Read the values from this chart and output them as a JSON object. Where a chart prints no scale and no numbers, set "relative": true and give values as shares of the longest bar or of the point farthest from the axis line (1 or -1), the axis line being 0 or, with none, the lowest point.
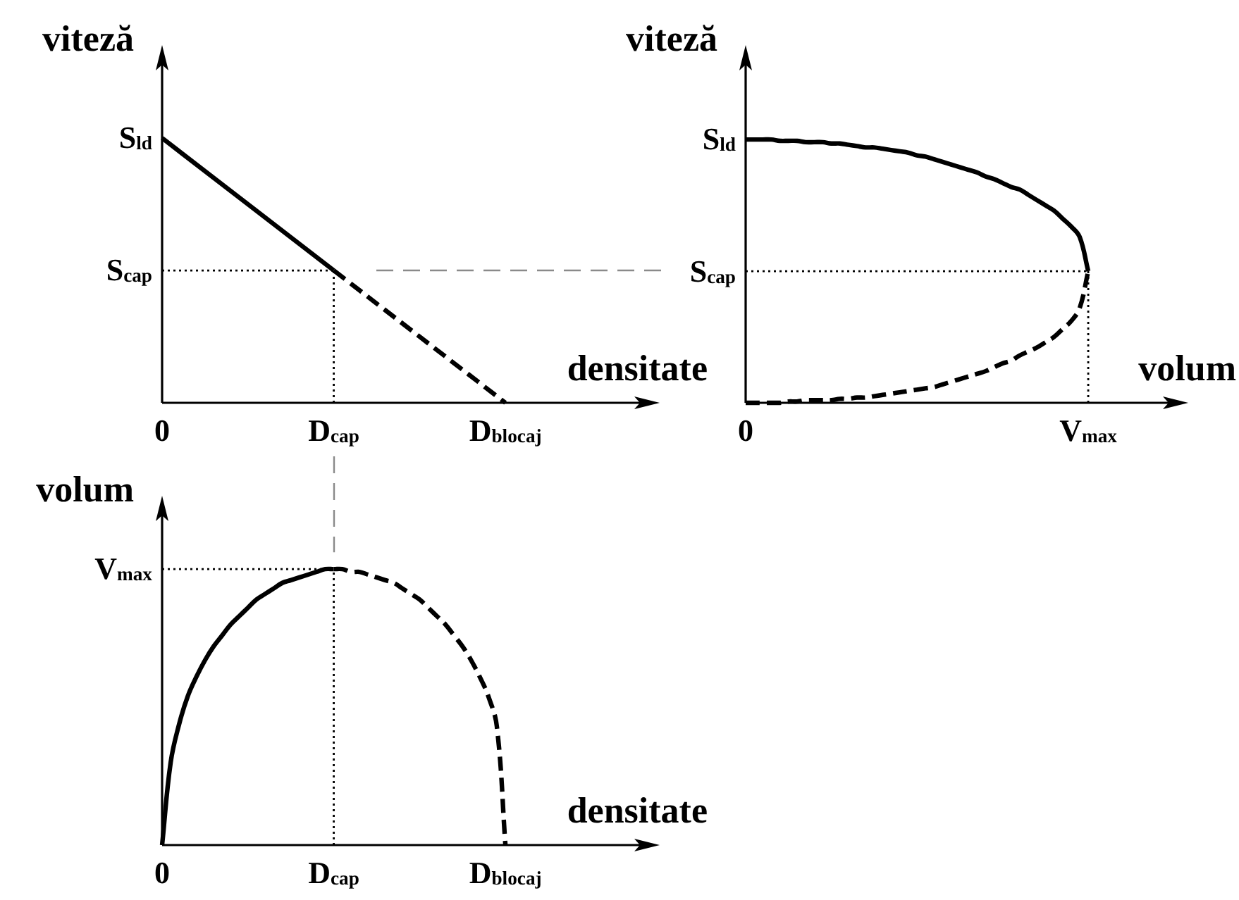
{
  "chart_data": [
    {
      "type": "line",
      "relative": true,
      "xlabel": "densitate",
      "ylabel": "viteză",
      "marker": "none",
      "categories": [
        "0",
        "D$_{cap}$",
        "D$_{blocaj}$"
      ],
      "series": [
        {
          "color": "#000000",
          "line_style": "solid",
          "values": [
            1,
            0.5,
            null
          ]
        },
        {
          "color": "#000000",
          "line_style": "dashed",
          "values": [
            null,
            0.5,
            0
          ]
        }
      ],
      "ref_lines": [
        {
          "axis": "y",
          "value": 0.5,
          "label": "S$_{cap}$",
          "color": "#000000",
          "line_style": "dotted"
        },
        {
          "axis": "x",
          "value": "D$_{cap}$",
          "color": "#000000",
          "line_style": "dotted"
        }
      ],
      "annotations": [
        {
          "text": "S$_{ld}$",
          "x": "0",
          "y": 1
        }
      ]
    },
    {
      "type": "line",
      "relative": true,
      "xlabel": "volum",
      "ylabel": "viteză",
      "marker": "none",
      "categories": [
        "0",
        null,
        null,
        null,
        null,
        null,
        null,
        null,
        null,
        null,
        null,
        null,
        null,
        null,
        null,
        null,
        null,
        null,
        null,
        null,
        null,
        null,
        null,
        null,
        null,
        null,
        null,
        null,
        null,
        null,
        null,
        null,
        null,
        null,
        null,
        null,
        null,
        null,
        null,
        null,
        "V$_{max}$"
      ],
      "series": [
        {
          "color": "#000000",
          "line_style": "solid",
          "values": [
            1,
            1,
            1,
            1,
            0.995,
            0.995,
            0.995,
            0.99,
            0.99,
            0.99,
            0.985,
            0.985,
            0.98,
            0.975,
            0.97,
            0.97,
            0.965,
            0.96,
            0.955,
            0.95,
            0.94,
            0.935,
            0.925,
            0.915,
            0.905,
            0.895,
            0.885,
            0.875,
            0.86,
            0.85,
            0.835,
            0.82,
            0.81,
            0.79,
            0.77,
            0.75,
            0.73,
            0.7,
            0.67,
            0.63,
            0.5
          ]
        },
        {
          "color": "#000000",
          "line_style": "dashed",
          "values": [
            0,
            0,
            0,
            0,
            0,
            0.005,
            0.005,
            0.01,
            0.01,
            0.01,
            0.01,
            0.015,
            0.015,
            0.02,
            0.02,
            0.025,
            0.03,
            0.035,
            0.04,
            0.045,
            0.05,
            0.055,
            0.06,
            0.07,
            0.08,
            0.09,
            0.1,
            0.11,
            0.12,
            0.135,
            0.15,
            0.16,
            0.18,
            0.195,
            0.21,
            0.23,
            0.25,
            0.28,
            0.31,
            0.36,
            0.5
          ]
        }
      ],
      "ref_lines": [
        {
          "axis": "y",
          "value": 0.5,
          "label": "S$_{cap}$",
          "color": "#000000",
          "line_style": "dotted"
        },
        {
          "axis": "x",
          "value": "V$_{max}$",
          "color": "#000000",
          "line_style": "dotted"
        }
      ],
      "annotations": [
        {
          "text": "S$_{ld}$",
          "x": "0",
          "y": 1
        }
      ]
    },
    {
      "type": "line",
      "relative": true,
      "xlabel": "densitate",
      "ylabel": "volum",
      "marker": "none",
      "categories": [
        "0",
        null,
        null,
        null,
        null,
        null,
        null,
        null,
        null,
        null,
        null,
        null,
        null,
        null,
        null,
        null,
        null,
        null,
        null,
        null,
        "D$_{cap}$",
        null,
        null,
        null,
        null,
        null,
        null,
        null,
        null,
        null,
        null,
        null,
        null,
        null,
        null,
        null,
        null,
        null,
        null,
        null,
        "D$_{blocaj}$"
      ],
      "series": [
        {
          "color": "#000000",
          "line_style": "solid",
          "values": [
            0,
            0.3,
            0.44,
            0.54,
            0.61,
            0.67,
            0.72,
            0.76,
            0.8,
            0.83,
            0.86,
            0.89,
            0.91,
            0.93,
            0.95,
            0.96,
            0.97,
            0.98,
            0.99,
            1,
            1,
            null,
            null,
            null,
            null,
            null,
            null,
            null,
            null,
            null,
            null,
            null,
            null,
            null,
            null,
            null,
            null,
            null,
            null,
            null,
            null
          ]
        },
        {
          "color": "#000000",
          "line_style": "dashed",
          "values": [
            null,
            null,
            null,
            null,
            null,
            null,
            null,
            null,
            null,
            null,
            null,
            null,
            null,
            null,
            null,
            null,
            null,
            null,
            null,
            null,
            1,
            1,
            0.99,
            0.99,
            0.98,
            0.97,
            0.96,
            0.95,
            0.93,
            0.91,
            0.89,
            0.86,
            0.83,
            0.8,
            0.76,
            0.72,
            0.67,
            0.61,
            0.54,
            0.43,
            0
          ]
        }
      ],
      "ref_lines": [
        {
          "axis": "y",
          "value": 1,
          "label": "V$_{max}$",
          "color": "#000000",
          "line_style": "dotted"
        },
        {
          "axis": "x",
          "value": "D$_{cap}$",
          "color": "#000000",
          "line_style": "dotted"
        }
      ]
    }
  ]
}
